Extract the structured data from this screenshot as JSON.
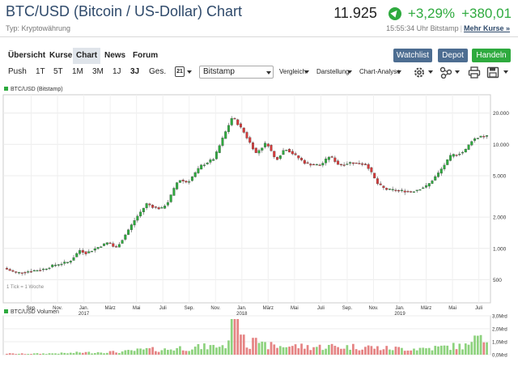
{
  "header": {
    "title": "BTC/USD (Bitcoin / US-Dollar) Chart",
    "price": "11.925",
    "change_pct": "+3,29%",
    "change_abs": "+380,01",
    "type_label": "Typ: Kryptowährung",
    "time_info": "15:55:34 Uhr Bitstamp",
    "more_link": "Mehr Kurse »"
  },
  "nav": {
    "tabs": [
      "Übersicht",
      "Kurse",
      "Chart",
      "News",
      "Forum"
    ],
    "active_tab": "Chart",
    "buttons": [
      "Watchlist",
      "Depot",
      "Handeln"
    ]
  },
  "toolbar": {
    "ranges": [
      "Push",
      "1T",
      "5T",
      "1M",
      "3M",
      "1J",
      "3J",
      "Ges."
    ],
    "active_range": "3J",
    "calendar_day": "21",
    "exchange": "Bitstamp",
    "dropdowns": [
      "Vergleich",
      "Darstellung",
      "Chart-Analyse"
    ],
    "icons": [
      "settings-icon",
      "indicators-icon",
      "print-icon",
      "save-icon"
    ]
  },
  "colors": {
    "up": "#2eaa3e",
    "down": "#d63a3a",
    "accent": "#4d6d91"
  },
  "chart_data": [
    {
      "type": "candlestick",
      "title": "BTC/USD (Bitstamp)",
      "subtitle": "1 Tick = 1 Woche",
      "scale": "log",
      "ylim": [
        300,
        30000
      ],
      "y_ticks": [
        "20.000",
        "10.000",
        "5.000",
        "2.000",
        "1.000",
        "500"
      ],
      "y_tick_values": [
        20000,
        10000,
        5000,
        2000,
        1000,
        500
      ],
      "x_labels": [
        {
          "m": 2,
          "t": "Sep."
        },
        {
          "m": 4,
          "t": "Nov."
        },
        {
          "m": 6,
          "t": "Jan.",
          "y": "2017"
        },
        {
          "m": 8,
          "t": "März"
        },
        {
          "m": 10,
          "t": "Mai"
        },
        {
          "m": 12,
          "t": "Juli"
        },
        {
          "m": 14,
          "t": "Sep."
        },
        {
          "m": 16,
          "t": "Nov."
        },
        {
          "m": 18,
          "t": "Jan.",
          "y": "2018"
        },
        {
          "m": 20,
          "t": "März"
        },
        {
          "m": 22,
          "t": "Mai"
        },
        {
          "m": 24,
          "t": "Juli"
        },
        {
          "m": 26,
          "t": "Sep."
        },
        {
          "m": 28,
          "t": "Nov."
        },
        {
          "m": 30,
          "t": "Jan.",
          "y": "2019"
        },
        {
          "m": 32,
          "t": "März"
        },
        {
          "m": 34,
          "t": "Mai"
        },
        {
          "m": 36,
          "t": "Juli"
        }
      ],
      "month_range": [
        0,
        36.7
      ],
      "x_unit": "months since Jul 2016",
      "grid": true,
      "anchors": [
        [
          0.0,
          650
        ],
        [
          1.0,
          580
        ],
        [
          2.0,
          605
        ],
        [
          3.0,
          630
        ],
        [
          4.0,
          700
        ],
        [
          5.0,
          740
        ],
        [
          5.8,
          960
        ],
        [
          6.3,
          900
        ],
        [
          7.0,
          1000
        ],
        [
          8.0,
          1150
        ],
        [
          8.5,
          1000
        ],
        [
          9.0,
          1200
        ],
        [
          10.0,
          1900
        ],
        [
          10.9,
          2700
        ],
        [
          11.4,
          2500
        ],
        [
          12.0,
          2400
        ],
        [
          12.5,
          2800
        ],
        [
          13.3,
          4600
        ],
        [
          14.0,
          4300
        ],
        [
          15.0,
          6200
        ],
        [
          16.0,
          7300
        ],
        [
          16.6,
          11000
        ],
        [
          17.4,
          18500
        ],
        [
          18.2,
          13500
        ],
        [
          19.2,
          8200
        ],
        [
          20.0,
          10500
        ],
        [
          20.7,
          7000
        ],
        [
          21.4,
          9200
        ],
        [
          22.3,
          7600
        ],
        [
          23.0,
          6500
        ],
        [
          24.1,
          6300
        ],
        [
          24.8,
          7800
        ],
        [
          25.5,
          6300
        ],
        [
          26.4,
          6700
        ],
        [
          27.6,
          6400
        ],
        [
          28.4,
          4200
        ],
        [
          29.0,
          3700
        ],
        [
          30.0,
          3600
        ],
        [
          31.0,
          3500
        ],
        [
          32.2,
          4000
        ],
        [
          33.0,
          5200
        ],
        [
          34.0,
          7800
        ],
        [
          35.0,
          8500
        ],
        [
          35.6,
          11000
        ],
        [
          36.2,
          12000
        ],
        [
          36.6,
          11900
        ]
      ]
    },
    {
      "type": "bar",
      "title": "BTC/USD Volumen",
      "y_ticks": [
        "3,0Mrd",
        "2,0Mrd",
        "1,0Mrd",
        "0,0Mrd"
      ],
      "y_tick_values": [
        3,
        2,
        1,
        0
      ],
      "ylim": [
        0,
        3
      ],
      "unit": "Mrd"
    }
  ]
}
